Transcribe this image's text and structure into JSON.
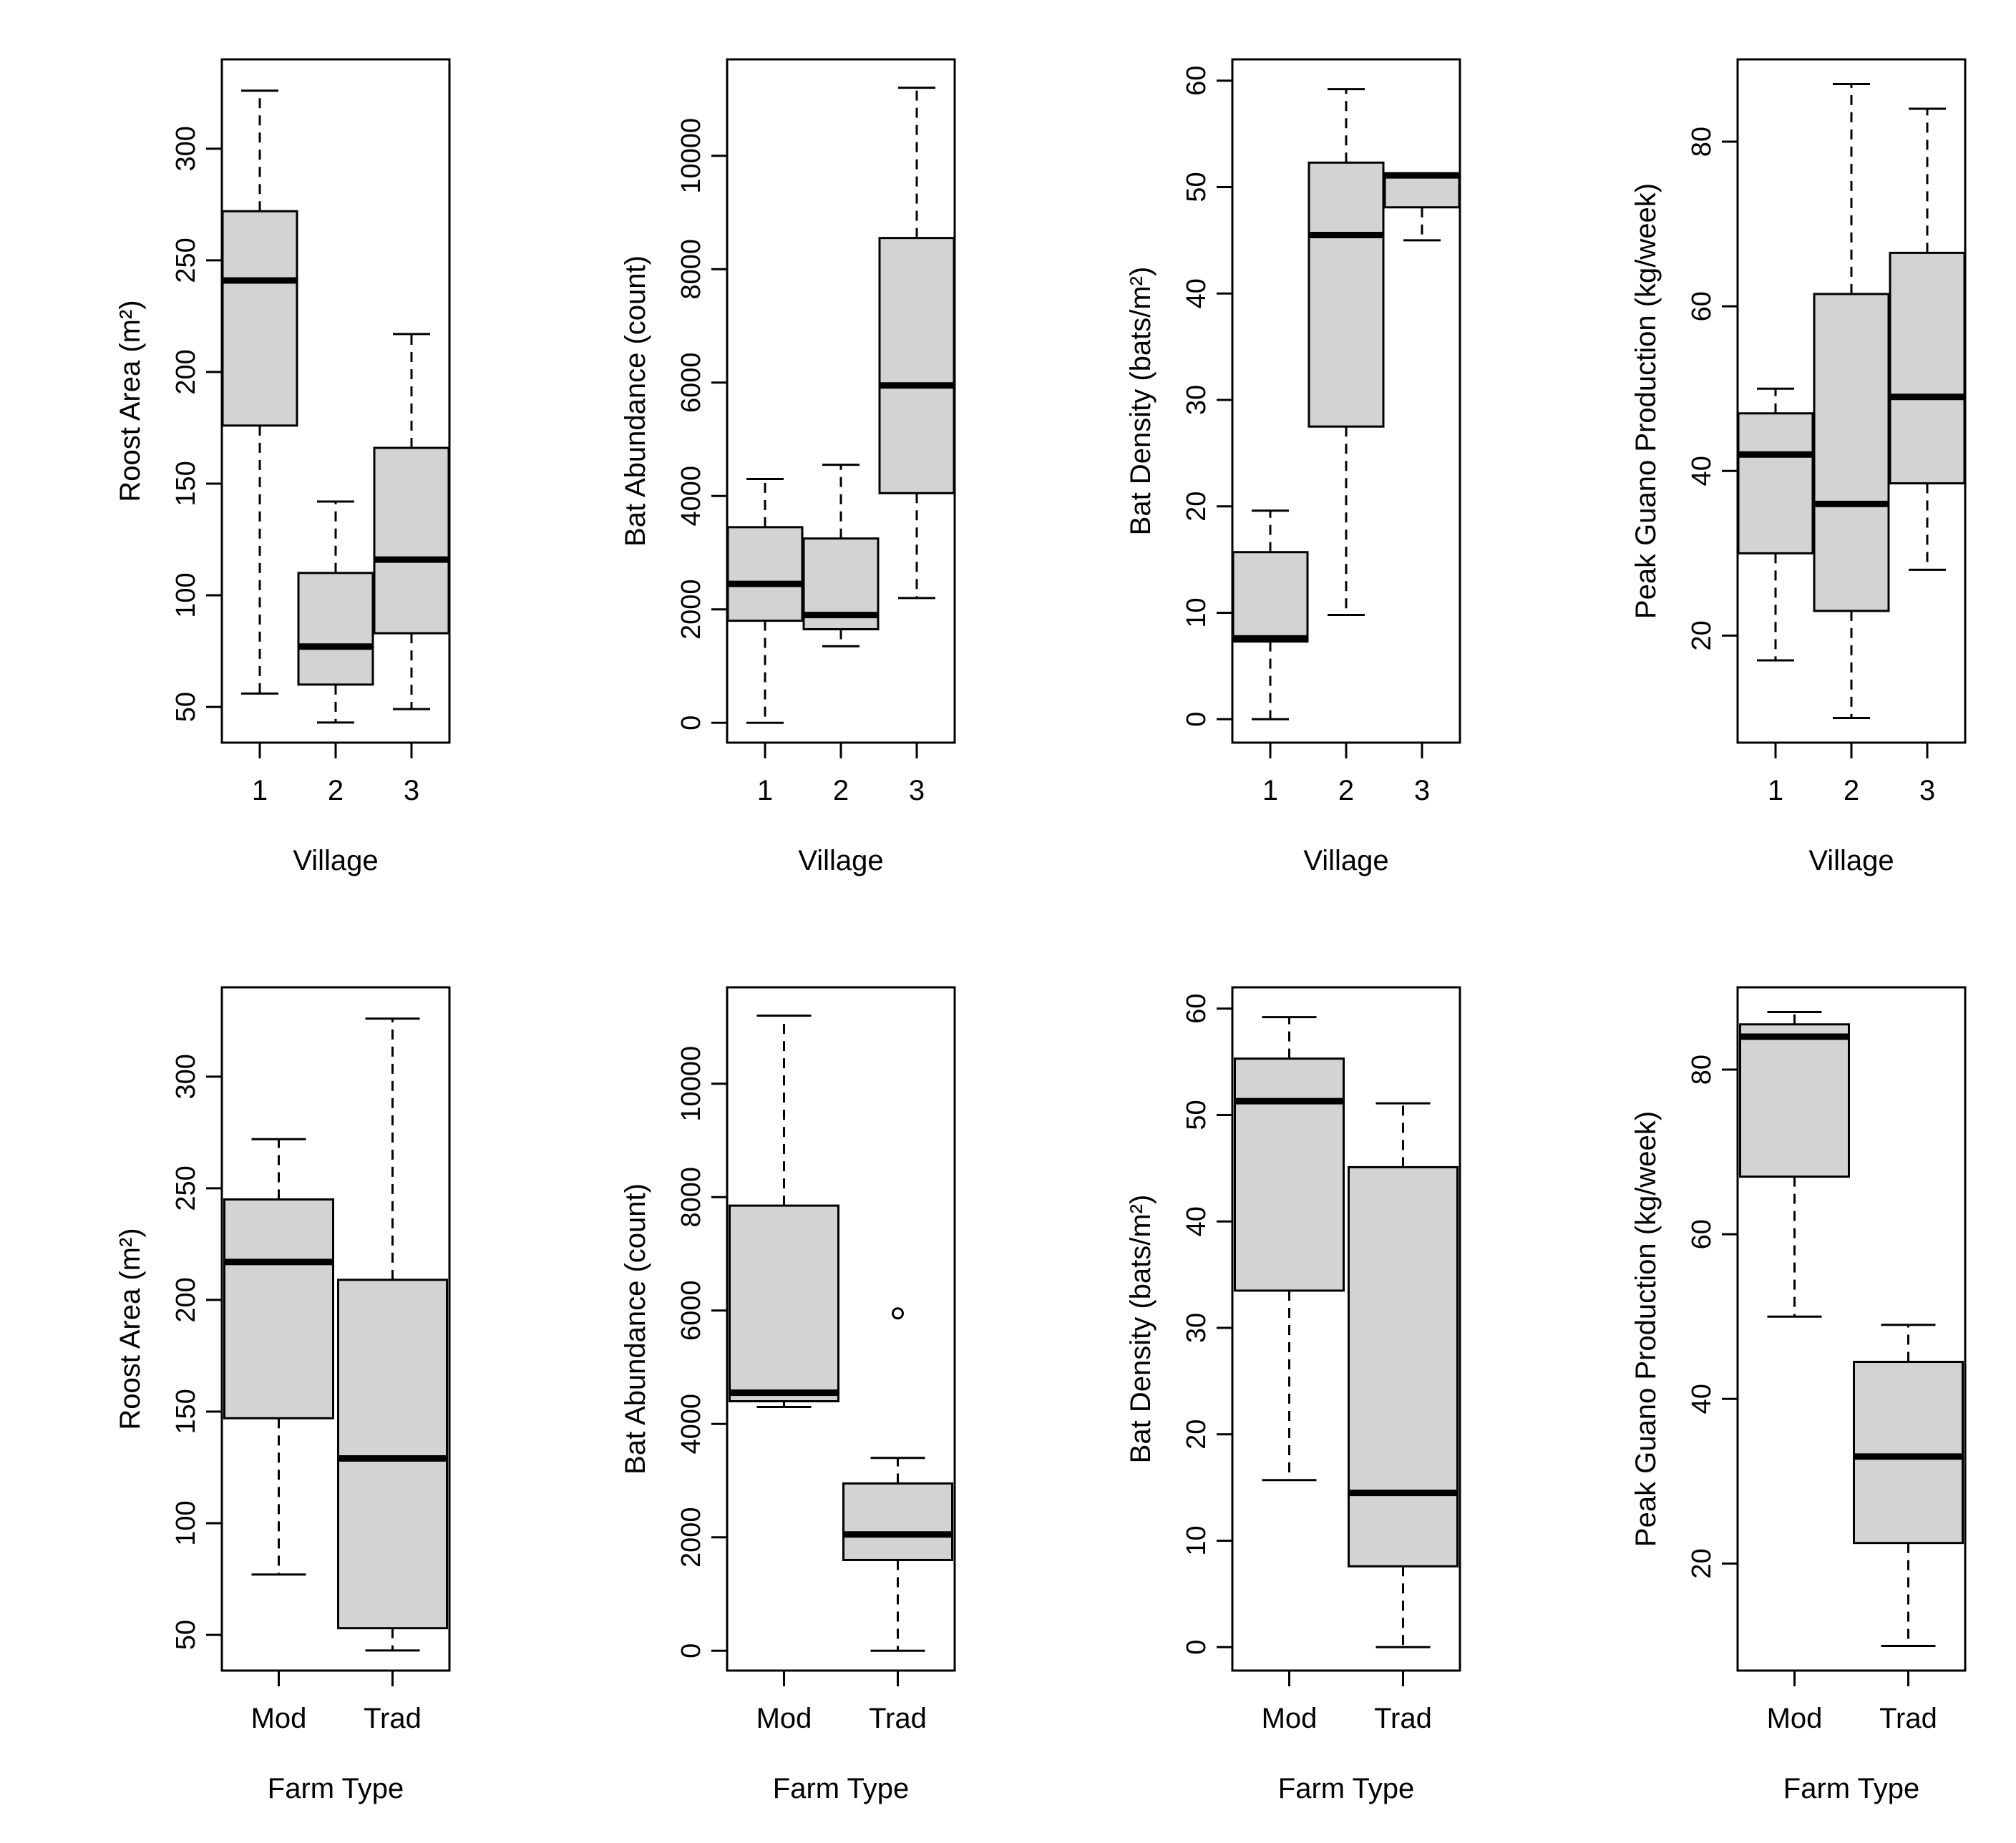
{
  "colors": {
    "box_fill": "#d3d3d3",
    "stroke": "#000000",
    "background": "#ffffff"
  },
  "chart_data": [
    {
      "type": "boxplot",
      "title": "",
      "xlabel": "Village",
      "ylabel": "Roost Area (m²)",
      "ylim": [
        34,
        340
      ],
      "yticks": [
        50,
        100,
        150,
        200,
        250,
        300
      ],
      "categories": [
        "1",
        "2",
        "3"
      ],
      "boxes": [
        {
          "whisker_low": 56,
          "q1": 176,
          "median": 241,
          "q3": 272,
          "whisker_high": 326,
          "outliers": []
        },
        {
          "whisker_low": 43,
          "q1": 60,
          "median": 77,
          "q3": 110,
          "whisker_high": 142,
          "outliers": []
        },
        {
          "whisker_low": 49,
          "q1": 83,
          "median": 116,
          "q3": 166,
          "whisker_high": 217,
          "outliers": []
        }
      ]
    },
    {
      "type": "boxplot",
      "title": "",
      "xlabel": "Village",
      "ylabel": "Bat Abundance (count)",
      "ylim": [
        -350,
        11700
      ],
      "yticks": [
        0,
        2000,
        4000,
        6000,
        8000,
        10000
      ],
      "categories": [
        "1",
        "2",
        "3"
      ],
      "boxes": [
        {
          "whisker_low": 0,
          "q1": 1800,
          "median": 2450,
          "q3": 3450,
          "whisker_high": 4300,
          "outliers": []
        },
        {
          "whisker_low": 1350,
          "q1": 1650,
          "median": 1900,
          "q3": 3250,
          "whisker_high": 4550,
          "outliers": []
        },
        {
          "whisker_low": 2200,
          "q1": 4050,
          "median": 5950,
          "q3": 8550,
          "whisker_high": 11200,
          "outliers": []
        }
      ]
    },
    {
      "type": "boxplot",
      "title": "",
      "xlabel": "Village",
      "ylabel": "Bat Density (bats/m²)",
      "ylim": [
        -2.2,
        62
      ],
      "yticks": [
        0,
        10,
        20,
        30,
        40,
        50,
        60
      ],
      "categories": [
        "1",
        "2",
        "3"
      ],
      "boxes": [
        {
          "whisker_low": 0,
          "q1": 7.3,
          "median": 7.6,
          "q3": 15.7,
          "whisker_high": 19.6,
          "outliers": []
        },
        {
          "whisker_low": 9.8,
          "q1": 27.5,
          "median": 45.5,
          "q3": 52.3,
          "whisker_high": 59.2,
          "outliers": []
        },
        {
          "whisker_low": 45,
          "q1": 48.1,
          "median": 51.1,
          "q3": 51.3,
          "whisker_high": 51.3,
          "outliers": []
        }
      ]
    },
    {
      "type": "boxplot",
      "title": "",
      "xlabel": "Village",
      "ylabel": "Peak Guano Production (kg/week)",
      "ylim": [
        7,
        90
      ],
      "yticks": [
        20,
        40,
        60,
        80
      ],
      "categories": [
        "1",
        "2",
        "3"
      ],
      "boxes": [
        {
          "whisker_low": 17,
          "q1": 30,
          "median": 42,
          "q3": 47,
          "whisker_high": 50,
          "outliers": []
        },
        {
          "whisker_low": 10,
          "q1": 23,
          "median": 36,
          "q3": 61.5,
          "whisker_high": 87,
          "outliers": []
        },
        {
          "whisker_low": 28,
          "q1": 38.5,
          "median": 49,
          "q3": 66.5,
          "whisker_high": 84,
          "outliers": []
        }
      ]
    },
    {
      "type": "boxplot",
      "title": "",
      "xlabel": "Farm Type",
      "ylabel": "Roost Area (m²)",
      "ylim": [
        34,
        340
      ],
      "yticks": [
        50,
        100,
        150,
        200,
        250,
        300
      ],
      "categories": [
        "Mod",
        "Trad"
      ],
      "boxes": [
        {
          "whisker_low": 77,
          "q1": 147,
          "median": 217,
          "q3": 245,
          "whisker_high": 272,
          "outliers": []
        },
        {
          "whisker_low": 43,
          "q1": 53,
          "median": 129,
          "q3": 209,
          "whisker_high": 326,
          "outliers": []
        }
      ]
    },
    {
      "type": "boxplot",
      "title": "",
      "xlabel": "Farm Type",
      "ylabel": "Bat Abundance (count)",
      "ylim": [
        -350,
        11700
      ],
      "yticks": [
        0,
        2000,
        4000,
        6000,
        8000,
        10000
      ],
      "categories": [
        "Mod",
        "Trad"
      ],
      "boxes": [
        {
          "whisker_low": 4300,
          "q1": 4400,
          "median": 4550,
          "q3": 7850,
          "whisker_high": 11200,
          "outliers": []
        },
        {
          "whisker_low": 0,
          "q1": 1600,
          "median": 2050,
          "q3": 2950,
          "whisker_high": 3400,
          "outliers": [
            5950
          ]
        }
      ]
    },
    {
      "type": "boxplot",
      "title": "",
      "xlabel": "Farm Type",
      "ylabel": "Bat Density (bats/m²)",
      "ylim": [
        -2.2,
        62
      ],
      "yticks": [
        0,
        10,
        20,
        30,
        40,
        50,
        60
      ],
      "categories": [
        "Mod",
        "Trad"
      ],
      "boxes": [
        {
          "whisker_low": 15.7,
          "q1": 33.5,
          "median": 51.3,
          "q3": 55.3,
          "whisker_high": 59.2,
          "outliers": []
        },
        {
          "whisker_low": 0,
          "q1": 7.6,
          "median": 14.5,
          "q3": 45.1,
          "whisker_high": 51.1,
          "outliers": []
        }
      ]
    },
    {
      "type": "boxplot",
      "title": "",
      "xlabel": "Farm Type",
      "ylabel": "Peak Guano Production (kg/week)",
      "ylim": [
        7,
        90
      ],
      "yticks": [
        20,
        40,
        60,
        80
      ],
      "categories": [
        "Mod",
        "Trad"
      ],
      "boxes": [
        {
          "whisker_low": 50,
          "q1": 67,
          "median": 84,
          "q3": 85.5,
          "whisker_high": 87,
          "outliers": []
        },
        {
          "whisker_low": 10,
          "q1": 22.5,
          "median": 33,
          "q3": 44.5,
          "whisker_high": 49,
          "outliers": []
        }
      ]
    }
  ]
}
